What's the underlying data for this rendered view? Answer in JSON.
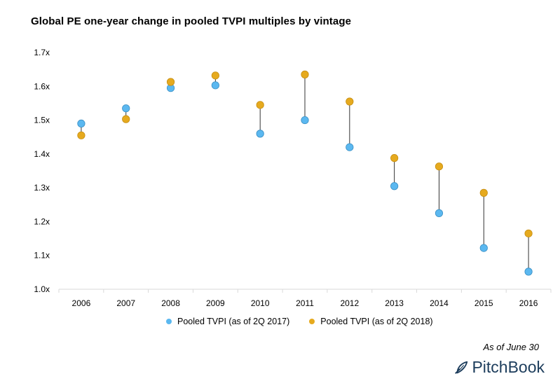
{
  "colors": {
    "series_2017": "#5bb8f0",
    "series_2018": "#e6aa1e",
    "connector": "#333333",
    "axis": "#d9d9d9",
    "logo": "#1d3d5c"
  },
  "note": "As of June 30",
  "logo": {
    "text": "PitchBook",
    "icon": "pitchbook-feather-icon"
  },
  "chart_data": {
    "type": "scatter",
    "title": "Global PE one-year change in pooled TVPI multiples by vintage",
    "categories": [
      "2006",
      "2007",
      "2008",
      "2009",
      "2010",
      "2011",
      "2012",
      "2013",
      "2014",
      "2015",
      "2016"
    ],
    "series": [
      {
        "name": "Pooled TVPI (as of 2Q 2017)",
        "values": [
          1.49,
          1.535,
          1.595,
          1.603,
          1.46,
          1.5,
          1.42,
          1.305,
          1.225,
          1.122,
          1.052
        ]
      },
      {
        "name": "Pooled TVPI (as of 2Q 2018)",
        "values": [
          1.455,
          1.503,
          1.613,
          1.632,
          1.545,
          1.635,
          1.555,
          1.388,
          1.363,
          1.285,
          1.165
        ]
      }
    ],
    "ylim": [
      1.0,
      1.7
    ],
    "yticks": [
      "1.0x",
      "1.1x",
      "1.2x",
      "1.3x",
      "1.4x",
      "1.5x",
      "1.6x",
      "1.7x"
    ],
    "grid": false,
    "legend_position": "bottom"
  }
}
